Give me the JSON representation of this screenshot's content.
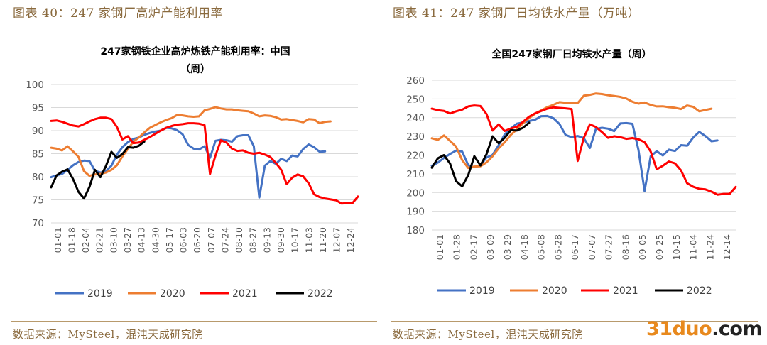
{
  "figures": [
    {
      "caption": "图表 40：247 家钢厂高炉产能利用率",
      "source": "数据来源：MySteel，混沌天成研究院",
      "chart_data": {
        "type": "line",
        "title_lines": [
          "247家钢铁企业高炉炼铁产能利用率：中国",
          "（周）"
        ],
        "xlabel": "",
        "ylabel": "",
        "ylim": [
          70,
          100
        ],
        "yticks": [
          "100",
          "95",
          "90",
          "85",
          "80",
          "75",
          "70"
        ],
        "xticks": [
          "01-01",
          "01-18",
          "02-04",
          "02-21",
          "03-10",
          "03-27",
          "04-13",
          "04-30",
          "05-17",
          "06-03",
          "06-20",
          "07-07",
          "07-24",
          "08-10",
          "08-27",
          "09-13",
          "09-30",
          "10-17",
          "11-03",
          "11-20",
          "12-07",
          "12-24"
        ],
        "grid": true,
        "legend_position": "bottom",
        "series": [
          {
            "name": "2019",
            "color": "#4472c4",
            "values": [
              79.9,
              80.3,
              80.6,
              81.5,
              82.5,
              83.2,
              83.5,
              83.4,
              81.3,
              80.9,
              81.2,
              82.4,
              84.8,
              86.4,
              87.5,
              88.2,
              88.5,
              89.1,
              89.5,
              89.8,
              90.0,
              90.6,
              90.5,
              90.1,
              89.2,
              86.9,
              86.1,
              85.9,
              86.6,
              84.1,
              87.8,
              88.0,
              87.9,
              87.6,
              88.8,
              89.0,
              89.0,
              86.6,
              75.5,
              82.4,
              83.4,
              82.8,
              83.9,
              83.4,
              84.6,
              84.4,
              86.0,
              87.0,
              86.4,
              85.4,
              85.5
            ]
          },
          {
            "name": "2020",
            "color": "#ed7d31",
            "values": [
              86.3,
              86.1,
              85.7,
              86.6,
              85.5,
              84.3,
              81.2,
              80.2,
              80.5,
              80.6,
              80.9,
              81.5,
              82.5,
              84.4,
              86.0,
              87.6,
              88.5,
              89.6,
              90.6,
              91.2,
              91.8,
              92.3,
              92.7,
              93.4,
              93.3,
              93.1,
              93.0,
              93.1,
              94.4,
              94.7,
              95.1,
              94.8,
              94.6,
              94.6,
              94.4,
              94.3,
              94.2,
              93.7,
              93.1,
              93.3,
              93.2,
              92.9,
              92.4,
              92.5,
              92.3,
              92.1,
              91.8,
              92.5,
              92.4,
              91.6,
              91.9,
              92.0
            ]
          },
          {
            "name": "2021",
            "color": "#ff0000",
            "values": [
              92.1,
              92.2,
              91.9,
              91.5,
              91.1,
              90.9,
              91.4,
              92.0,
              92.5,
              92.8,
              92.8,
              92.5,
              90.8,
              88.1,
              88.8,
              87.3,
              87.4,
              88.0,
              88.6,
              89.3,
              90.0,
              90.6,
              91.0,
              91.3,
              91.4,
              91.6,
              91.6,
              91.5,
              91.2,
              80.6,
              84.6,
              87.9,
              87.4,
              86.1,
              85.6,
              85.7,
              85.2,
              85.0,
              85.2,
              84.8,
              84.3,
              83.0,
              81.5,
              78.4,
              79.8,
              80.5,
              80.1,
              78.6,
              76.2,
              75.6,
              75.3,
              75.1,
              74.9,
              74.2,
              74.3,
              74.3,
              75.7
            ]
          },
          {
            "name": "2022",
            "color": "#000000",
            "values": [
              77.7,
              80.3,
              81.1,
              81.6,
              79.5,
              76.7,
              75.3,
              77.8,
              81.5,
              79.9,
              82.3,
              85.4,
              84.1,
              84.9,
              86.4,
              86.3,
              86.7,
              87.6
            ]
          }
        ]
      }
    },
    {
      "caption": "图表 41：247 家钢厂日均铁水产量（万吨）",
      "source": "数据来源：MySteel，混沌天成研究院",
      "chart_data": {
        "type": "line",
        "title_lines": [
          "全国247家钢厂日均铁水产量（周）"
        ],
        "xlabel": "",
        "ylabel": "",
        "ylim": [
          180,
          260
        ],
        "yticks": [
          "260",
          "250",
          "240",
          "230",
          "220",
          "210",
          "200",
          "190",
          "180"
        ],
        "xticks": [
          "01-01",
          "01-28",
          "02-17",
          "03-09",
          "03-29",
          "04-18",
          "05-08",
          "05-28",
          "06-17",
          "07-07",
          "07-27",
          "08-16",
          "09-05",
          "09-25",
          "10-15",
          "11-04",
          "11-24",
          "12-14"
        ],
        "grid": true,
        "legend_position": "bottom",
        "series": [
          {
            "name": "2019",
            "color": "#4472c4",
            "values": [
              214.3,
              216.0,
              218.5,
              220.6,
              222.4,
              221.9,
              214.6,
              213.5,
              214.5,
              218.7,
              220.1,
              225.3,
              231.1,
              234.2,
              236.8,
              237.4,
              238.2,
              238.9,
              240.8,
              240.9,
              239.7,
              236.6,
              230.8,
              229.5,
              230.2,
              229.1,
              223.8,
              234.0,
              234.6,
              234.1,
              232.8,
              236.9,
              237.1,
              236.7,
              222.8,
              200.8,
              219.4,
              222.1,
              219.8,
              222.9,
              222.2,
              225.3,
              225.0,
              229.4,
              232.4,
              230.2,
              227.4,
              227.8
            ]
          },
          {
            "name": "2020",
            "color": "#ed7d31",
            "values": [
              229.0,
              228.1,
              230.5,
              227.6,
              224.5,
              217.3,
              213.1,
              213.9,
              214.0,
              216.1,
              219.4,
              223.6,
              226.9,
              230.8,
              233.8,
              237.0,
              239.8,
              242.1,
              243.9,
              245.6,
              246.9,
              248.3,
              248.0,
              247.7,
              247.8,
              251.7,
              252.2,
              252.9,
              252.6,
              252.0,
              251.6,
              251.1,
              250.2,
              248.5,
              247.5,
              248.1,
              246.8,
              246.0,
              246.1,
              245.6,
              245.3,
              244.6,
              246.5,
              245.8,
              243.4,
              244.1,
              244.8
            ]
          },
          {
            "name": "2021",
            "color": "#ff0000",
            "values": [
              244.8,
              244.0,
              243.6,
              242.2,
              243.4,
              244.3,
              246.0,
              246.5,
              246.2,
              242.0,
              233.1,
              236.4,
              232.9,
              234.2,
              235.1,
              237.8,
              240.5,
              242.3,
              243.6,
              244.8,
              245.5,
              245.2,
              245.0,
              244.6,
              216.9,
              229.2,
              236.4,
              235.0,
              232.3,
              229.2,
              230.1,
              229.6,
              228.7,
              229.1,
              228.5,
              226.9,
              221.9,
              212.4,
              214.3,
              216.6,
              215.6,
              211.8,
              205.0,
              203.1,
              202.0,
              201.7,
              200.5,
              198.9,
              199.3,
              199.3,
              203.0
            ]
          },
          {
            "name": "2022",
            "color": "#000000",
            "values": [
              213.3,
              218.3,
              220.0,
              215.5,
              206.1,
              203.3,
              209.4,
              219.4,
              214.5,
              220.4,
              230.0,
              226.3,
              229.3,
              233.3,
              233.1,
              234.6,
              237.3
            ]
          }
        ]
      }
    }
  ],
  "watermark": {
    "part1": "31duo",
    "part2": ".com"
  }
}
